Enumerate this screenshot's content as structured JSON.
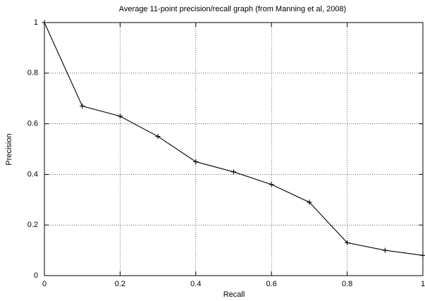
{
  "chart_data": {
    "type": "line",
    "title": "Average 11-point precision/recall graph (from Manning et al, 2008)",
    "x_label": "Recall",
    "y_label": "Precision",
    "x": [
      0,
      0.1,
      0.2,
      0.3,
      0.4,
      0.5,
      0.6,
      0.7,
      0.8,
      0.9,
      1
    ],
    "series": [
      {
        "color": "#000000",
        "values": [
          1,
          0.67,
          0.63,
          0.55,
          0.45,
          0.41,
          0.36,
          0.29,
          0.13,
          0.1,
          0.08
        ]
      }
    ],
    "xlim": [
      0,
      1
    ],
    "xticks": [
      0,
      0.2,
      0.4,
      0.6,
      0.8,
      1
    ],
    "ylim": [
      0,
      1
    ],
    "yticks": [
      0,
      0.2,
      0.4,
      0.6,
      0.8,
      1
    ],
    "grid": true
  }
}
